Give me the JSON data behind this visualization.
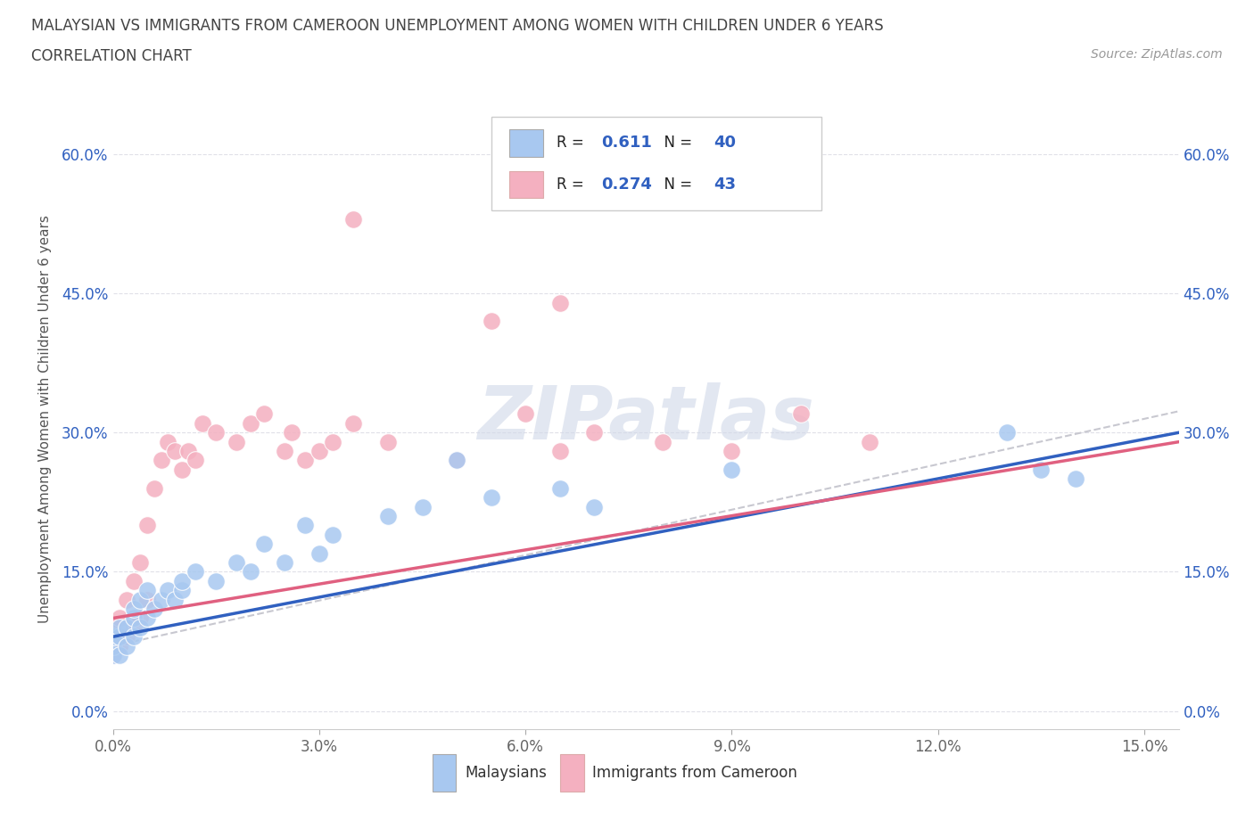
{
  "title_line1": "MALAYSIAN VS IMMIGRANTS FROM CAMEROON UNEMPLOYMENT AMONG WOMEN WITH CHILDREN UNDER 6 YEARS",
  "title_line2": "CORRELATION CHART",
  "source": "Source: ZipAtlas.com",
  "blue_color": "#a8c8f0",
  "pink_color": "#f4b0c0",
  "blue_line_color": "#3060c0",
  "pink_line_color": "#e06080",
  "dashed_color": "#c8c8d0",
  "ylabel": "Unemployment Among Women with Children Under 6 years",
  "R_blue": "0.611",
  "N_blue": "40",
  "R_pink": "0.274",
  "N_pink": "43",
  "legend_label_blue": "Malaysians",
  "legend_label_pink": "Immigrants from Cameroon",
  "xlim": [
    0.0,
    0.155
  ],
  "ylim": [
    -0.02,
    0.65
  ],
  "xticks": [
    0.0,
    0.03,
    0.06,
    0.09,
    0.12,
    0.15
  ],
  "xticklabels": [
    "0.0%",
    "3.0%",
    "6.0%",
    "9.0%",
    "12.0%",
    "15.0%"
  ],
  "yticks": [
    0.0,
    0.15,
    0.3,
    0.45,
    0.6
  ],
  "yticklabels": [
    "0.0%",
    "15.0%",
    "30.0%",
    "45.0%",
    "60.0%"
  ],
  "blue_x": [
    0.0,
    0.0,
    0.0,
    0.001,
    0.001,
    0.001,
    0.002,
    0.002,
    0.003,
    0.003,
    0.003,
    0.004,
    0.004,
    0.005,
    0.005,
    0.006,
    0.007,
    0.008,
    0.009,
    0.01,
    0.01,
    0.012,
    0.015,
    0.018,
    0.02,
    0.022,
    0.025,
    0.028,
    0.03,
    0.032,
    0.04,
    0.045,
    0.05,
    0.055,
    0.065,
    0.07,
    0.09,
    0.13,
    0.135,
    0.14
  ],
  "blue_y": [
    0.06,
    0.07,
    0.08,
    0.06,
    0.08,
    0.09,
    0.07,
    0.09,
    0.08,
    0.1,
    0.11,
    0.09,
    0.12,
    0.1,
    0.13,
    0.11,
    0.12,
    0.13,
    0.12,
    0.13,
    0.14,
    0.15,
    0.14,
    0.16,
    0.15,
    0.18,
    0.16,
    0.2,
    0.17,
    0.19,
    0.21,
    0.22,
    0.27,
    0.23,
    0.24,
    0.22,
    0.26,
    0.3,
    0.26,
    0.25
  ],
  "pink_x": [
    0.0,
    0.0,
    0.0,
    0.001,
    0.001,
    0.002,
    0.002,
    0.003,
    0.003,
    0.004,
    0.004,
    0.005,
    0.005,
    0.006,
    0.007,
    0.008,
    0.009,
    0.01,
    0.011,
    0.012,
    0.013,
    0.015,
    0.018,
    0.02,
    0.022,
    0.025,
    0.026,
    0.028,
    0.03,
    0.032,
    0.035,
    0.04,
    0.05,
    0.06,
    0.065,
    0.07,
    0.08,
    0.09,
    0.1,
    0.11,
    0.035,
    0.055,
    0.065
  ],
  "pink_y": [
    0.06,
    0.07,
    0.09,
    0.07,
    0.1,
    0.08,
    0.12,
    0.09,
    0.14,
    0.1,
    0.16,
    0.12,
    0.2,
    0.24,
    0.27,
    0.29,
    0.28,
    0.26,
    0.28,
    0.27,
    0.31,
    0.3,
    0.29,
    0.31,
    0.32,
    0.28,
    0.3,
    0.27,
    0.28,
    0.29,
    0.31,
    0.29,
    0.27,
    0.32,
    0.28,
    0.3,
    0.29,
    0.28,
    0.32,
    0.29,
    0.53,
    0.42,
    0.44
  ]
}
